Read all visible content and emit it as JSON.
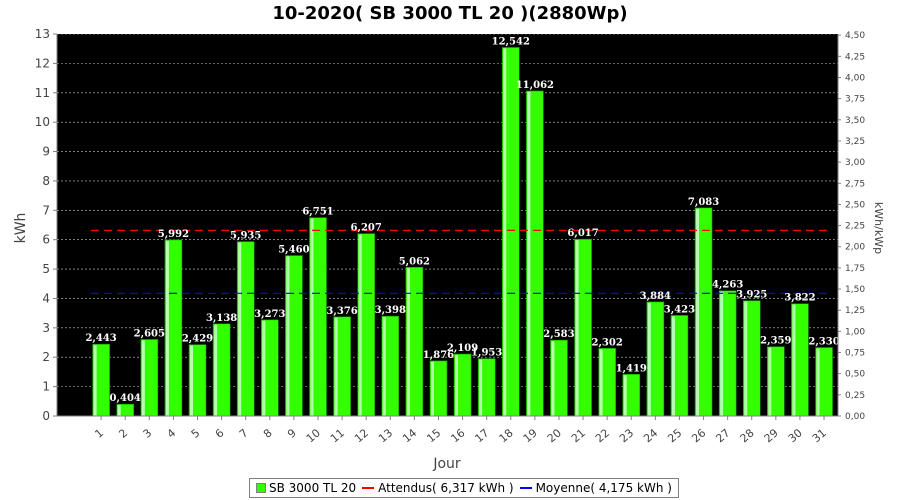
{
  "title": "10-2020( SB 3000 TL 20 )(2880Wp)",
  "colors": {
    "bar": "#33ff00",
    "bar_highlight": "#ccffcc",
    "plot_bg": "#000000",
    "expected": "#ff0000",
    "average": "#0000ff",
    "grid": "#ffffff"
  },
  "legend": {
    "bar_label": "SB 3000 TL 20",
    "expected_label": "Attendus( 6,317 kWh )",
    "average_label": "Moyenne( 4,175 kWh )"
  },
  "chart_data": {
    "type": "bar",
    "title": "10-2020( SB 3000 TL 20 )(2880Wp)",
    "xlabel": "Jour",
    "ylabel": "kWh",
    "y2label": "kWh/kWp",
    "categories": [
      "1",
      "2",
      "3",
      "4",
      "5",
      "6",
      "7",
      "8",
      "9",
      "10",
      "11",
      "12",
      "13",
      "14",
      "15",
      "16",
      "17",
      "18",
      "19",
      "20",
      "21",
      "22",
      "23",
      "24",
      "25",
      "26",
      "27",
      "28",
      "29",
      "30",
      "31"
    ],
    "series": [
      {
        "name": "SB 3000 TL 20",
        "values": [
          2.443,
          0.404,
          2.605,
          5.992,
          2.429,
          3.138,
          5.935,
          3.273,
          5.46,
          6.751,
          3.376,
          6.207,
          3.398,
          5.062,
          1.876,
          2.109,
          1.953,
          12.542,
          11.062,
          2.583,
          6.017,
          2.302,
          1.419,
          3.884,
          3.423,
          7.083,
          4.263,
          3.925,
          2.359,
          3.822,
          2.33
        ]
      }
    ],
    "data_labels": [
      "2,443",
      "0,404",
      "2,605",
      "5,992",
      "2,429",
      "3,138",
      "5,935",
      "3,273",
      "5,460",
      "6,751",
      "3,376",
      "6,207",
      "3,398",
      "5,062",
      "1,876",
      "2,109",
      "1,953",
      "12,542",
      "11,062",
      "2,583",
      "6,017",
      "2,302",
      "1,419",
      "3,884",
      "3,423",
      "7,083",
      "4,263",
      "3,925",
      "2,359",
      "3,822",
      "2,330"
    ],
    "reference_lines": [
      {
        "name": "Attendus( 6,317 kWh )",
        "value": 6.317,
        "color": "#ff0000",
        "style": "dashed"
      },
      {
        "name": "Moyenne( 4,175 kWh )",
        "value": 4.175,
        "color": "#0000ff",
        "style": "dashed"
      }
    ],
    "ylim": [
      0,
      13
    ],
    "yticks": [
      "0",
      "1",
      "2",
      "3",
      "4",
      "5",
      "6",
      "7",
      "8",
      "9",
      "10",
      "11",
      "12",
      "13"
    ],
    "y2lim": [
      0,
      4.514
    ],
    "y2ticks": [
      "0,00",
      "0,25",
      "0,50",
      "0,75",
      "1,00",
      "1,25",
      "1,50",
      "1,75",
      "2,00",
      "2,25",
      "2,50",
      "2,75",
      "3,00",
      "3,25",
      "3,50",
      "3,75",
      "4,00",
      "4,25",
      "4,50"
    ],
    "grid": true,
    "legend_position": "bottom"
  }
}
